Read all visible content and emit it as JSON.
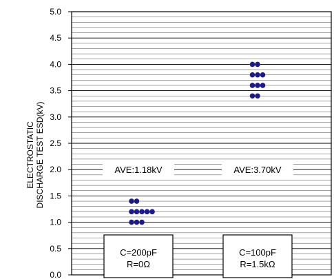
{
  "chart_data": {
    "type": "scatter",
    "ylabel_lines": [
      "ELECTROSTATIC",
      "DISCHARGE TEST ESD(kV)"
    ],
    "ylim": [
      0.0,
      5.0
    ],
    "yticks": [
      "0.0",
      "0.5",
      "1.0",
      "1.5",
      "2.0",
      "2.5",
      "3.0",
      "3.5",
      "4.0",
      "4.5",
      "5.0"
    ],
    "grid": true,
    "series": [
      {
        "condition": [
          "C=200pF",
          "R=0Ω"
        ],
        "average_label": "AVE:1.18kV",
        "color": "#1a1a8c",
        "points": [
          {
            "y": 1.4,
            "count": 2
          },
          {
            "y": 1.2,
            "count": 5
          },
          {
            "y": 1.0,
            "count": 3
          }
        ]
      },
      {
        "condition": [
          "C=100pF",
          "R=1.5kΩ"
        ],
        "average_label": "AVE:3.70kV",
        "color": "#1a1a8c",
        "points": [
          {
            "y": 4.0,
            "count": 2
          },
          {
            "y": 3.8,
            "count": 3
          },
          {
            "y": 3.6,
            "count": 3
          },
          {
            "y": 3.4,
            "count": 2
          }
        ]
      }
    ]
  }
}
